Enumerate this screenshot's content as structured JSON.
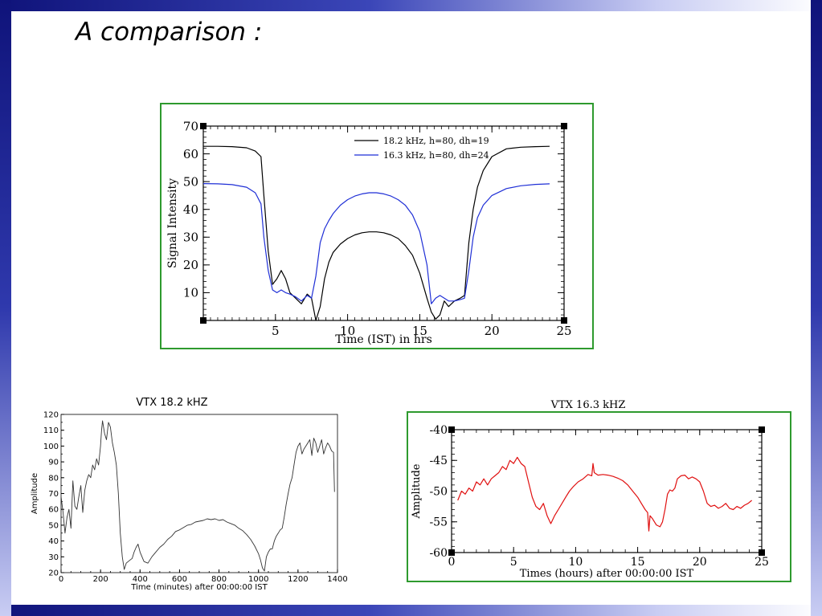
{
  "slide": {
    "title": "A comparison :"
  },
  "chart_data": [
    {
      "type": "line",
      "title": "",
      "xlabel": "Time (IST) in hrs",
      "ylabel": "Signal Intensity",
      "xlim": [
        0,
        25
      ],
      "ylim": [
        0,
        70
      ],
      "xticks": [
        5,
        10,
        15,
        20,
        25
      ],
      "yticks": [
        10,
        20,
        30,
        40,
        50,
        60,
        70
      ],
      "legend_position": "top-right",
      "series": [
        {
          "name": "18.2 kHz, h=80, dh=19",
          "color": "#000000",
          "x": [
            0,
            1,
            2,
            3,
            3.6,
            4.0,
            4.2,
            4.5,
            4.8,
            5.1,
            5.4,
            5.7,
            6.0,
            6.4,
            6.8,
            7.2,
            7.5,
            7.8,
            8.1,
            8.4,
            8.7,
            9.0,
            9.5,
            10,
            10.5,
            11,
            11.5,
            12,
            12.5,
            13,
            13.5,
            14,
            14.5,
            15,
            15.5,
            15.8,
            16.1,
            16.4,
            16.7,
            17.0,
            17.4,
            17.8,
            18.1,
            18.4,
            18.7,
            19.0,
            19.4,
            20,
            21,
            22,
            23,
            24
          ],
          "y": [
            62.7,
            62.7,
            62.6,
            62.2,
            61,
            59,
            45,
            25,
            13,
            15,
            18,
            15,
            10,
            8,
            6,
            9.5,
            8,
            0,
            5,
            15,
            21,
            24.5,
            27.5,
            29.5,
            30.8,
            31.6,
            31.9,
            31.9,
            31.6,
            30.8,
            29.5,
            27,
            23.5,
            17,
            8,
            3,
            0.5,
            2,
            7,
            5,
            7,
            8,
            9,
            28,
            40,
            48,
            54,
            59,
            61.8,
            62.4,
            62.6,
            62.7
          ]
        },
        {
          "name": "16.3 kHz, h=80, dh=24",
          "color": "#1f2fd6",
          "x": [
            0,
            1,
            2,
            3,
            3.6,
            4.0,
            4.2,
            4.5,
            4.8,
            5.1,
            5.4,
            5.7,
            6.0,
            6.4,
            6.8,
            7.2,
            7.5,
            7.8,
            8.1,
            8.4,
            8.7,
            9.0,
            9.5,
            10,
            10.5,
            11,
            11.5,
            12,
            12.5,
            13,
            13.5,
            14,
            14.5,
            15,
            15.5,
            15.8,
            16.1,
            16.4,
            16.7,
            17.0,
            17.4,
            17.8,
            18.1,
            18.4,
            18.7,
            19.0,
            19.4,
            20,
            21,
            22,
            23,
            24
          ],
          "y": [
            49.3,
            49.2,
            48.9,
            48,
            46,
            42,
            30,
            18,
            11,
            10,
            11,
            10,
            9.5,
            8.5,
            7,
            9,
            8,
            16,
            28,
            33,
            36,
            38.5,
            41.5,
            43.5,
            44.8,
            45.6,
            46,
            46,
            45.6,
            44.8,
            43.5,
            41.5,
            38,
            32,
            20,
            6,
            8,
            9,
            8,
            7,
            7,
            7.5,
            8,
            18,
            30,
            37,
            41.5,
            45,
            47.5,
            48.5,
            49,
            49.2
          ]
        }
      ]
    },
    {
      "type": "line",
      "title": "VTX 18.2 kHZ",
      "xlabel": "Time (minutes) after 00:00:00 IST",
      "ylabel": "Amplitude",
      "xlim": [
        0,
        1400
      ],
      "ylim": [
        20,
        120
      ],
      "xticks": [
        0,
        200,
        400,
        600,
        800,
        1000,
        1200,
        1400
      ],
      "yticks": [
        20,
        30,
        40,
        50,
        60,
        70,
        80,
        90,
        100,
        110,
        120
      ],
      "series": [
        {
          "color": "#333333",
          "x": [
            0,
            10,
            20,
            30,
            40,
            50,
            60,
            70,
            80,
            90,
            100,
            110,
            120,
            130,
            140,
            150,
            160,
            170,
            180,
            190,
            200,
            205,
            210,
            220,
            230,
            240,
            250,
            260,
            270,
            280,
            290,
            300,
            310,
            320,
            330,
            340,
            350,
            360,
            370,
            380,
            390,
            400,
            420,
            440,
            460,
            480,
            500,
            520,
            540,
            560,
            580,
            600,
            620,
            640,
            660,
            680,
            700,
            720,
            740,
            760,
            780,
            800,
            820,
            840,
            860,
            880,
            900,
            920,
            940,
            960,
            980,
            1000,
            1010,
            1020,
            1030,
            1040,
            1050,
            1060,
            1070,
            1080,
            1090,
            1100,
            1110,
            1120,
            1130,
            1140,
            1150,
            1160,
            1170,
            1180,
            1190,
            1200,
            1210,
            1220,
            1230,
            1240,
            1250,
            1260,
            1270,
            1280,
            1290,
            1300,
            1310,
            1320,
            1330,
            1340,
            1350,
            1360,
            1370,
            1380,
            1385
          ],
          "y": [
            68,
            58,
            45,
            55,
            60,
            48,
            78,
            62,
            60,
            68,
            75,
            58,
            72,
            78,
            82,
            80,
            88,
            85,
            92,
            88,
            100,
            110,
            116,
            108,
            104,
            115,
            112,
            102,
            96,
            88,
            70,
            45,
            30,
            22,
            26,
            27,
            28,
            29,
            33,
            36,
            38,
            33,
            27,
            26,
            30,
            33,
            36,
            38,
            41,
            43,
            46,
            47,
            48.5,
            50,
            50.5,
            52,
            52.5,
            53,
            54,
            53.5,
            54,
            53,
            53.5,
            52,
            51,
            50,
            48,
            46.5,
            44,
            41,
            37,
            32,
            28,
            23,
            21,
            30,
            33,
            35,
            35,
            40,
            43,
            45,
            47,
            48,
            55,
            63,
            70,
            76,
            80,
            88,
            96,
            100,
            102,
            95,
            98,
            100,
            102,
            104,
            94,
            105,
            102,
            96,
            100,
            104,
            95,
            99,
            102,
            100,
            97,
            96,
            71
          ]
        }
      ]
    },
    {
      "type": "line",
      "title": "VTX 16.3 kHZ",
      "xlabel": "Times (hours) after 00:00:00 IST",
      "ylabel": "Amplitude",
      "xlim": [
        0,
        25
      ],
      "ylim": [
        -60,
        -40
      ],
      "xticks": [
        0,
        5,
        10,
        15,
        20,
        25
      ],
      "yticks": [
        -60,
        -55,
        -50,
        -45,
        -40
      ],
      "series": [
        {
          "color": "#e01010",
          "x": [
            0.5,
            0.8,
            1.1,
            1.4,
            1.7,
            2.0,
            2.3,
            2.6,
            2.9,
            3.2,
            3.5,
            3.8,
            4.1,
            4.4,
            4.7,
            5.0,
            5.3,
            5.6,
            5.9,
            6.2,
            6.5,
            6.8,
            7.1,
            7.4,
            7.7,
            8.0,
            8.3,
            8.6,
            8.9,
            9.2,
            9.5,
            9.8,
            10.2,
            10.6,
            11.0,
            11.3,
            11.4,
            11.5,
            11.8,
            12.2,
            12.6,
            13.0,
            13.4,
            13.8,
            14.2,
            14.6,
            15.0,
            15.3,
            15.6,
            15.8,
            15.9,
            16.0,
            16.2,
            16.5,
            16.8,
            17.0,
            17.2,
            17.4,
            17.6,
            17.8,
            18.0,
            18.2,
            18.5,
            18.8,
            19.1,
            19.4,
            19.7,
            20.0,
            20.3,
            20.6,
            20.9,
            21.2,
            21.5,
            21.8,
            22.1,
            22.4,
            22.7,
            23.0,
            23.3,
            23.6,
            23.9,
            24.2
          ],
          "y": [
            -51.5,
            -50,
            -50.5,
            -49.5,
            -50,
            -48.5,
            -49,
            -48,
            -49,
            -48,
            -47.5,
            -47,
            -46,
            -46.5,
            -45,
            -45.5,
            -44.5,
            -45.5,
            -46,
            -48.5,
            -51,
            -52.5,
            -53,
            -52,
            -54,
            -55.3,
            -54,
            -53,
            -52,
            -51,
            -50,
            -49.3,
            -48.5,
            -48,
            -47.3,
            -47.5,
            -45.5,
            -47,
            -47.4,
            -47.3,
            -47.4,
            -47.6,
            -47.9,
            -48.3,
            -49,
            -50,
            -51,
            -52,
            -53,
            -53.5,
            -56.5,
            -54,
            -54.5,
            -55.5,
            -55.8,
            -55,
            -53,
            -50.5,
            -49.8,
            -50,
            -49.5,
            -48,
            -47.5,
            -47.4,
            -48,
            -47.7,
            -48,
            -48.5,
            -50,
            -52,
            -52.5,
            -52.3,
            -52.8,
            -52.5,
            -52,
            -52.8,
            -53,
            -52.5,
            -52.8,
            -52.3,
            -52,
            -51.5
          ]
        }
      ]
    }
  ]
}
